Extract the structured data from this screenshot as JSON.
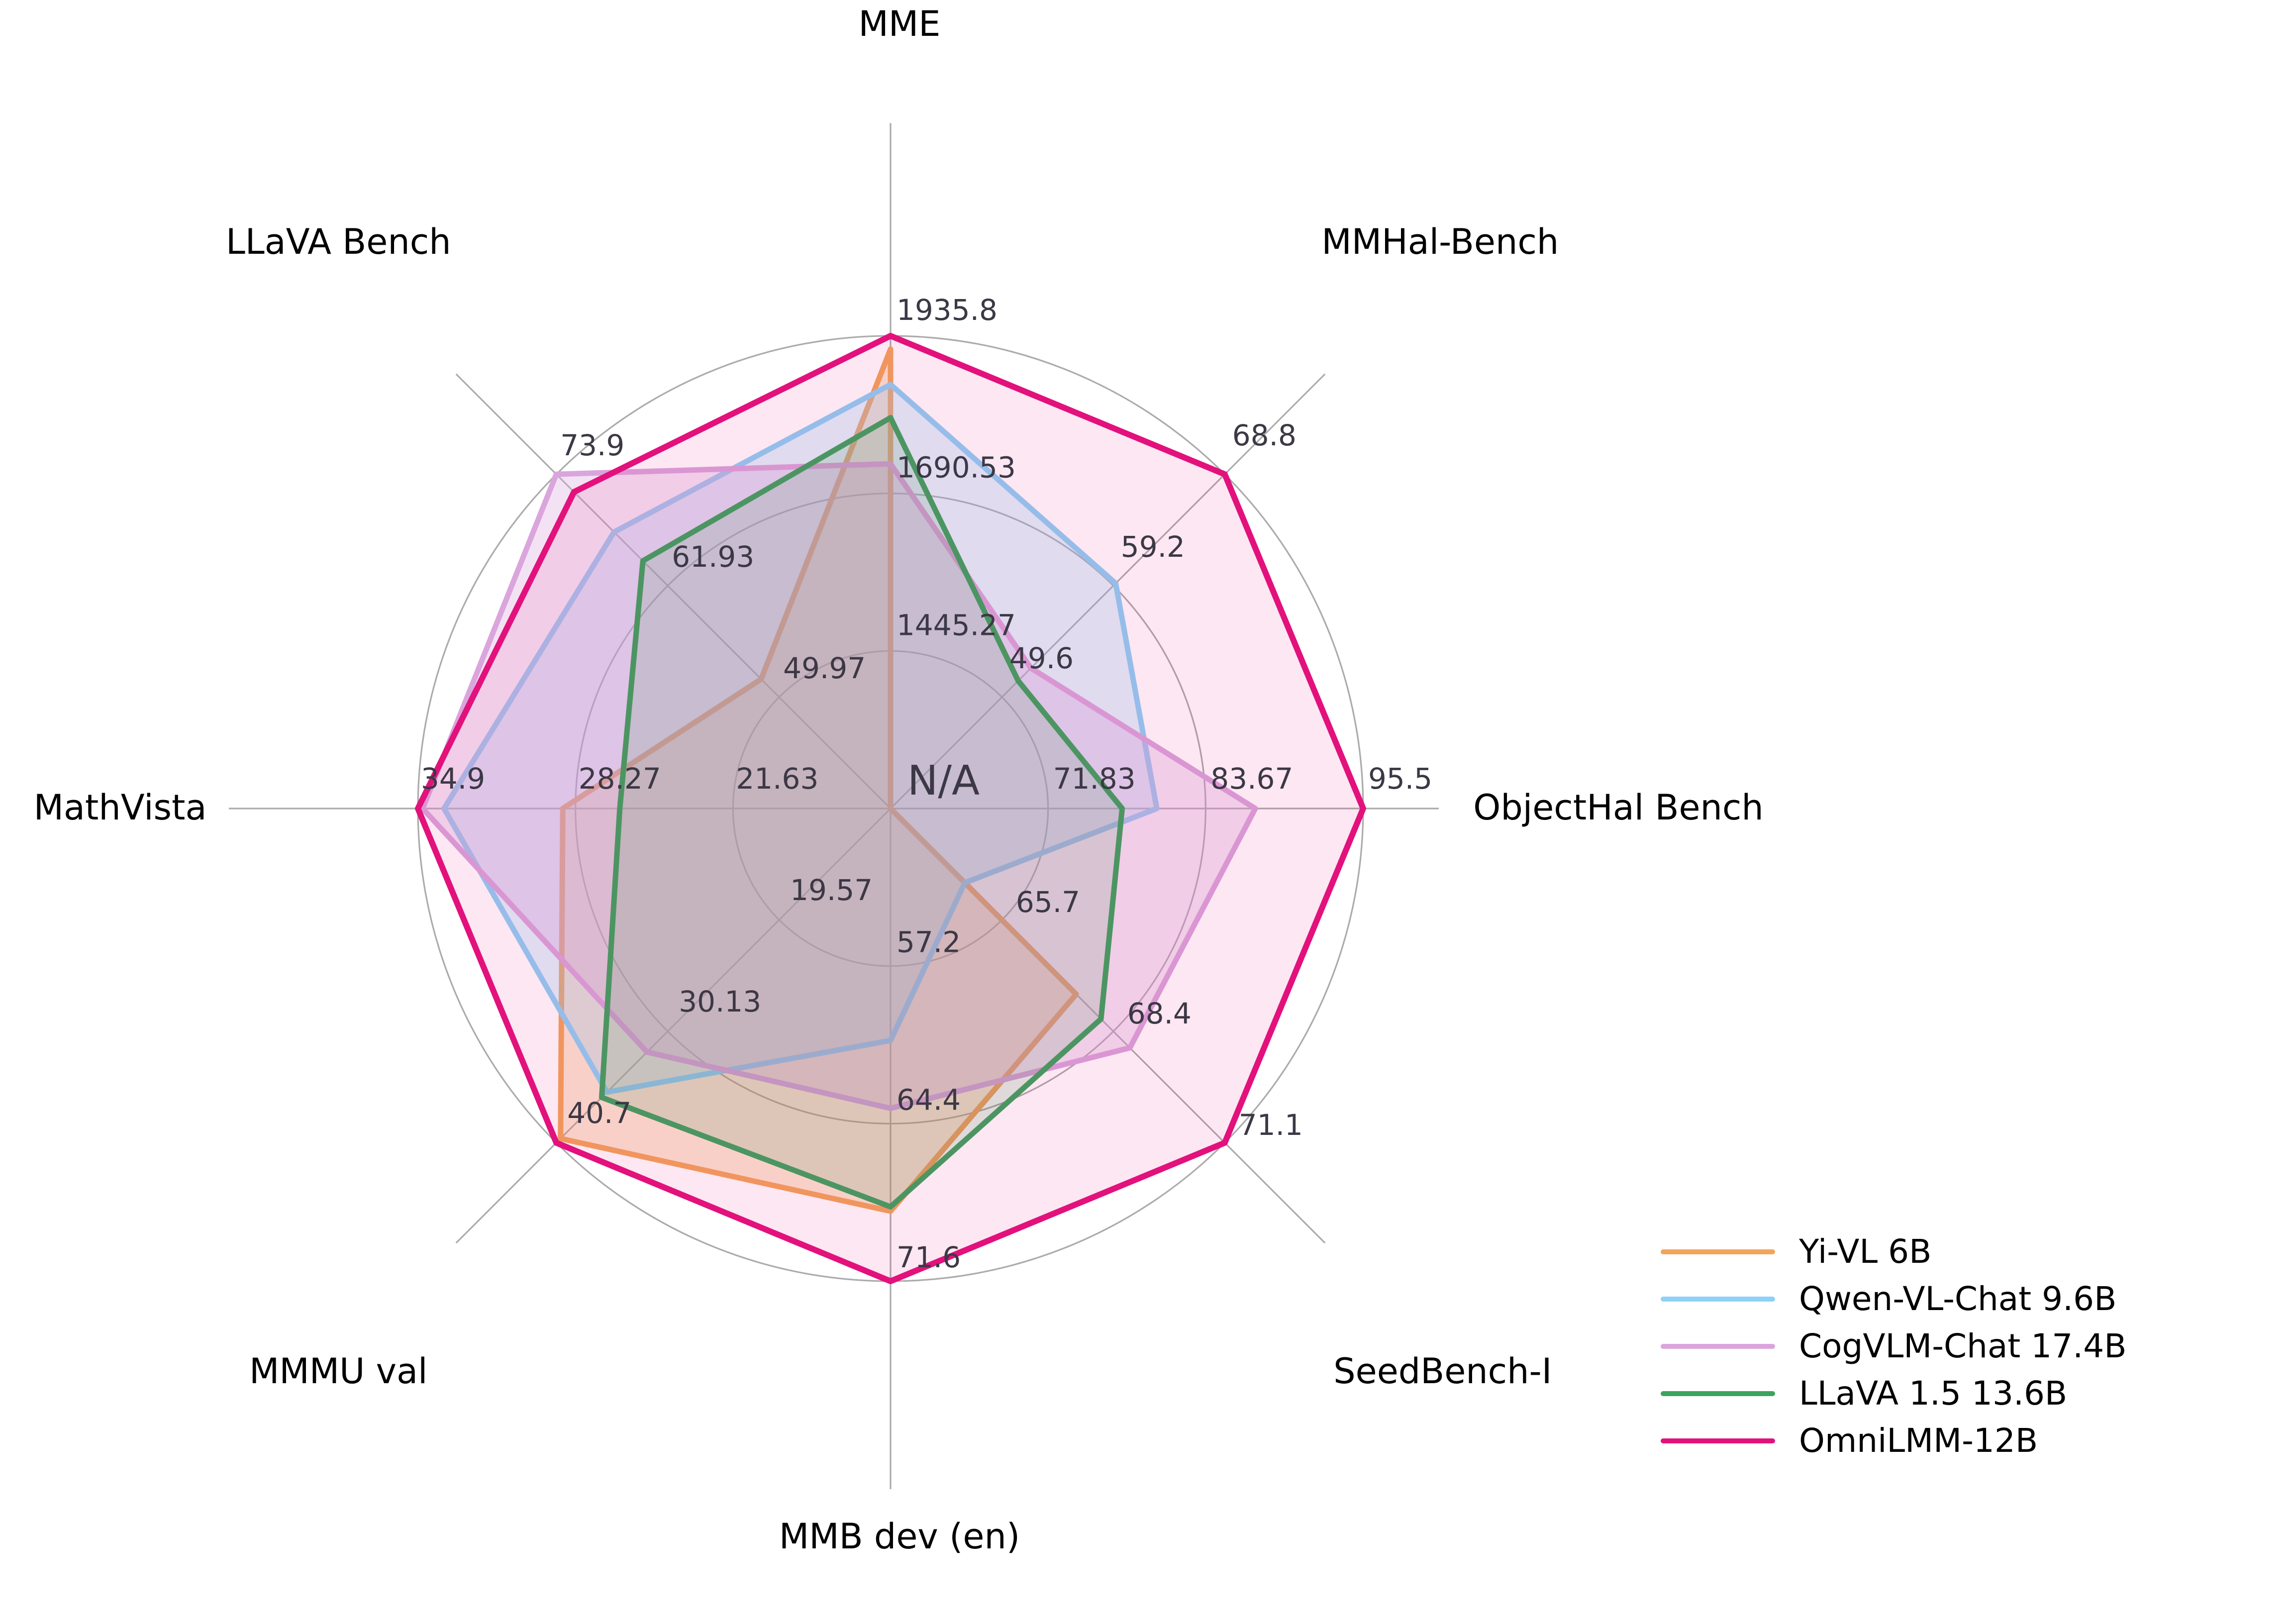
{
  "chart_data": {
    "type": "radar",
    "title": "",
    "grid": "on",
    "legend_position": "lower right",
    "center_label": "N/A",
    "axes": [
      {
        "label": "MME",
        "min": 1200,
        "max": 1935.8,
        "ring_labels": [
          "1445.27",
          "1690.53",
          "1935.8"
        ]
      },
      {
        "label": "MMHal-Bench",
        "min": 40,
        "max": 68.8,
        "ring_labels": [
          "49.6",
          "59.2",
          "68.8"
        ]
      },
      {
        "label": "ObjectHal Bench",
        "min": 60,
        "max": 95.5,
        "ring_labels": [
          "71.83",
          "83.67",
          "95.5"
        ]
      },
      {
        "label": "SeedBench-I",
        "min": 63,
        "max": 71.1,
        "ring_labels": [
          "65.7",
          "68.4",
          "71.1"
        ]
      },
      {
        "label": "MMB dev (en)",
        "min": 50,
        "max": 71.6,
        "ring_labels": [
          "57.2",
          "64.4",
          "71.6"
        ]
      },
      {
        "label": "MMMU val",
        "min": 9,
        "max": 40.7,
        "ring_labels": [
          "19.57",
          "30.13",
          "40.7"
        ]
      },
      {
        "label": "MathVista",
        "min": 15,
        "max": 34.9,
        "ring_labels": [
          "21.63",
          "28.27",
          "34.9"
        ]
      },
      {
        "label": "LLaVA Bench",
        "min": 38,
        "max": 73.9,
        "ring_labels": [
          "49.97",
          "61.93",
          "73.9"
        ]
      }
    ],
    "series": [
      {
        "name": "Yi-VL 6B",
        "color": "#F3A45B",
        "values": [
          1915.1,
          null,
          null,
          67.5,
          68.4,
          40.3,
          28.8,
          51.9
        ]
      },
      {
        "name": "Qwen-VL-Chat 9.6B",
        "color": "#8ED1F6",
        "values": [
          1860.0,
          59.4,
          80.0,
          64.8,
          60.6,
          35.9,
          33.8,
          67.7
        ]
      },
      {
        "name": "CogVLM-Chat 17.4B",
        "color": "#DAA5DD",
        "values": [
          1736.6,
          52.1,
          87.4,
          68.8,
          63.7,
          32.1,
          34.7,
          73.9
        ]
      },
      {
        "name": "LLaVA 1.5 13.6B",
        "color": "#3CA45F",
        "values": [
          1808.4,
          51.0,
          77.4,
          68.1,
          68.2,
          36.4,
          26.4,
          64.6
        ]
      },
      {
        "name": "OmniLMM-12B",
        "color": "#E2117C",
        "values": [
          1935.8,
          68.8,
          95.5,
          71.1,
          71.6,
          40.7,
          34.9,
          72.0
        ]
      }
    ]
  },
  "styles": {
    "background": "#FFFFFF",
    "grid_color": "#ABABAB",
    "ring_label_color": "#3C3845",
    "title_color": "#000000"
  }
}
